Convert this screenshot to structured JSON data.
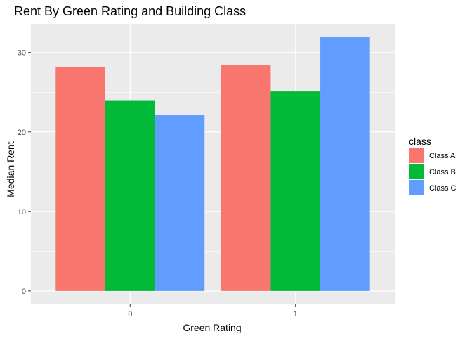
{
  "chart_data": {
    "type": "bar",
    "title": "Rent By Green Rating and Building Class",
    "xlabel": "Green Rating",
    "ylabel": "Median Rent",
    "categories": [
      "0",
      "1"
    ],
    "series": [
      {
        "name": "Class A",
        "color": "#F8766D",
        "values": [
          28.2,
          28.44
        ]
      },
      {
        "name": "Class B",
        "color": "#00BA38",
        "values": [
          24.0,
          25.1
        ]
      },
      {
        "name": "Class C",
        "color": "#619CFF",
        "values": [
          22.1,
          32.0
        ]
      }
    ],
    "ylim": [
      -1.6,
      33.6
    ],
    "yticks": [
      0,
      10,
      20,
      30
    ],
    "ytick_labels": [
      "0",
      "10",
      "20",
      "30"
    ],
    "legend": {
      "title": "class",
      "position": "right"
    },
    "grid": true,
    "panel_background": "#EBEBEB",
    "grid_color": "#FFFFFF"
  }
}
